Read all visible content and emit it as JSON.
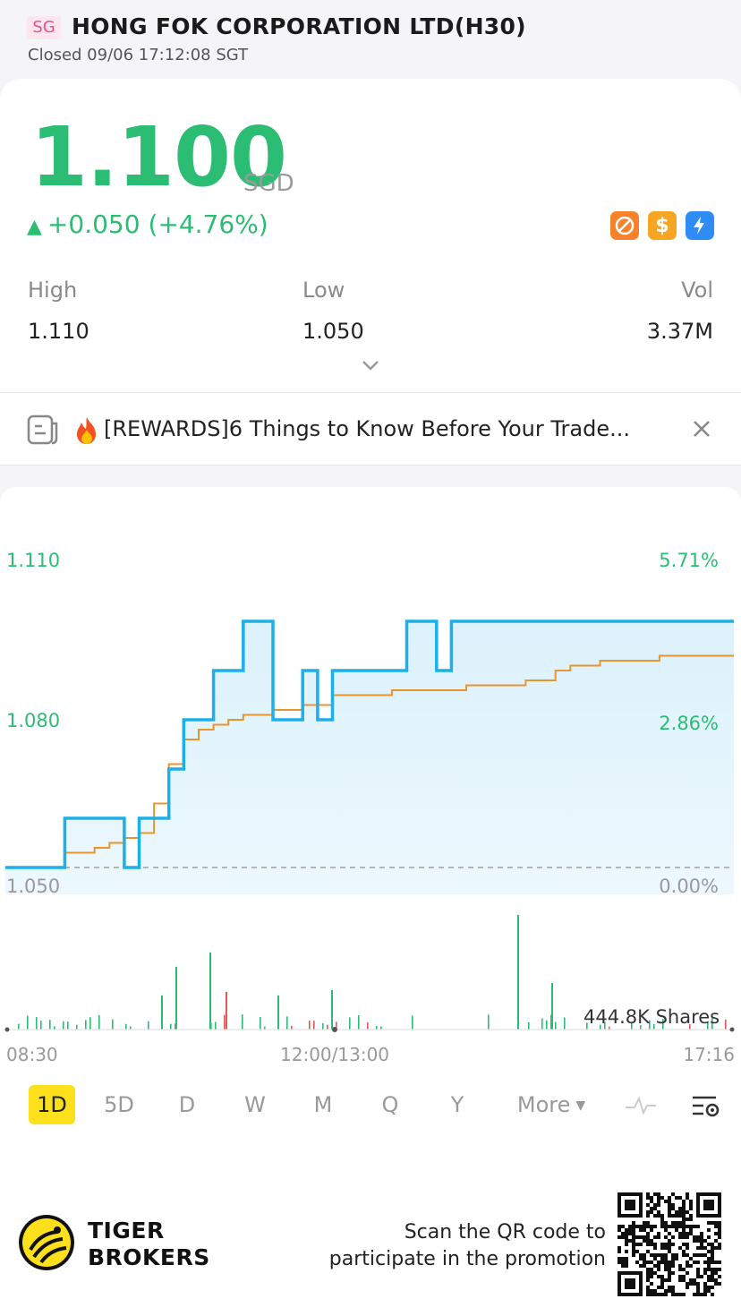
{
  "header": {
    "market_badge": "SG",
    "title": "HONG FOK CORPORATION LTD(H30)",
    "status": "Closed 09/06 17:12:08 SGT"
  },
  "quote": {
    "price": "1.100",
    "currency": "SGD",
    "change": "+0.050 (+4.76%)",
    "change_arrow": "▲",
    "color_up": "#2cbd74",
    "tag_icons": [
      "no-short-icon",
      "dollar-icon",
      "lightning-icon"
    ],
    "tag_dollar_glyph": "$",
    "high_label": "High",
    "high": "1.110",
    "low_label": "Low",
    "low": "1.050",
    "vol_label": "Vol",
    "vol": "3.37M"
  },
  "promo": {
    "text": "[REWARDS]6 Things to Know Before Your Trade..."
  },
  "chart": {
    "y_left": [
      "1.110",
      "1.080",
      "1.050"
    ],
    "y_right": [
      "5.71%",
      "2.86%",
      "0.00%"
    ],
    "volume_label": "444.8K Shares",
    "time_labels": [
      "08:30",
      "12:00/13:00",
      "17:16"
    ],
    "line_color": "#1cb0ea",
    "avg_color": "#e8952e"
  },
  "chart_data": {
    "type": "line",
    "x_range": [
      "08:30",
      "17:16"
    ],
    "ylim": [
      1.05,
      1.11
    ],
    "series": [
      {
        "values": [
          1.05,
          1.05,
          1.05,
          1.05,
          1.06,
          1.06,
          1.06,
          1.06,
          1.05,
          1.06,
          1.06,
          1.07,
          1.08,
          1.08,
          1.09,
          1.09,
          1.1,
          1.1,
          1.08,
          1.08,
          1.09,
          1.08,
          1.09,
          1.09,
          1.09,
          1.09,
          1.09,
          1.1,
          1.1,
          1.09,
          1.1,
          1.1,
          1.1,
          1.1,
          1.1,
          1.1,
          1.1,
          1.1,
          1.1,
          1.1,
          1.1,
          1.1,
          1.1,
          1.1,
          1.1,
          1.1,
          1.1,
          1.1,
          1.1,
          1.1
        ]
      },
      {
        "values": [
          1.05,
          1.05,
          1.05,
          1.05,
          1.053,
          1.053,
          1.054,
          1.055,
          1.056,
          1.057,
          1.063,
          1.071,
          1.076,
          1.078,
          1.079,
          1.08,
          1.081,
          1.081,
          1.082,
          1.082,
          1.083,
          1.083,
          1.085,
          1.085,
          1.085,
          1.085,
          1.086,
          1.086,
          1.086,
          1.086,
          1.086,
          1.087,
          1.087,
          1.087,
          1.087,
          1.088,
          1.088,
          1.09,
          1.091,
          1.091,
          1.092,
          1.092,
          1.092,
          1.092,
          1.093,
          1.093,
          1.093,
          1.093,
          1.093,
          1.093
        ]
      }
    ],
    "volume_max": "444.8K Shares"
  },
  "tabs": [
    "1D",
    "5D",
    "D",
    "W",
    "M",
    "Q",
    "Y",
    "More"
  ],
  "active_tab": "1D",
  "footer": {
    "brand_line1": "TIGER",
    "brand_line2": "BROKERS",
    "qr_line1": "Scan the QR code to",
    "qr_line2": "participate in the promotion"
  }
}
